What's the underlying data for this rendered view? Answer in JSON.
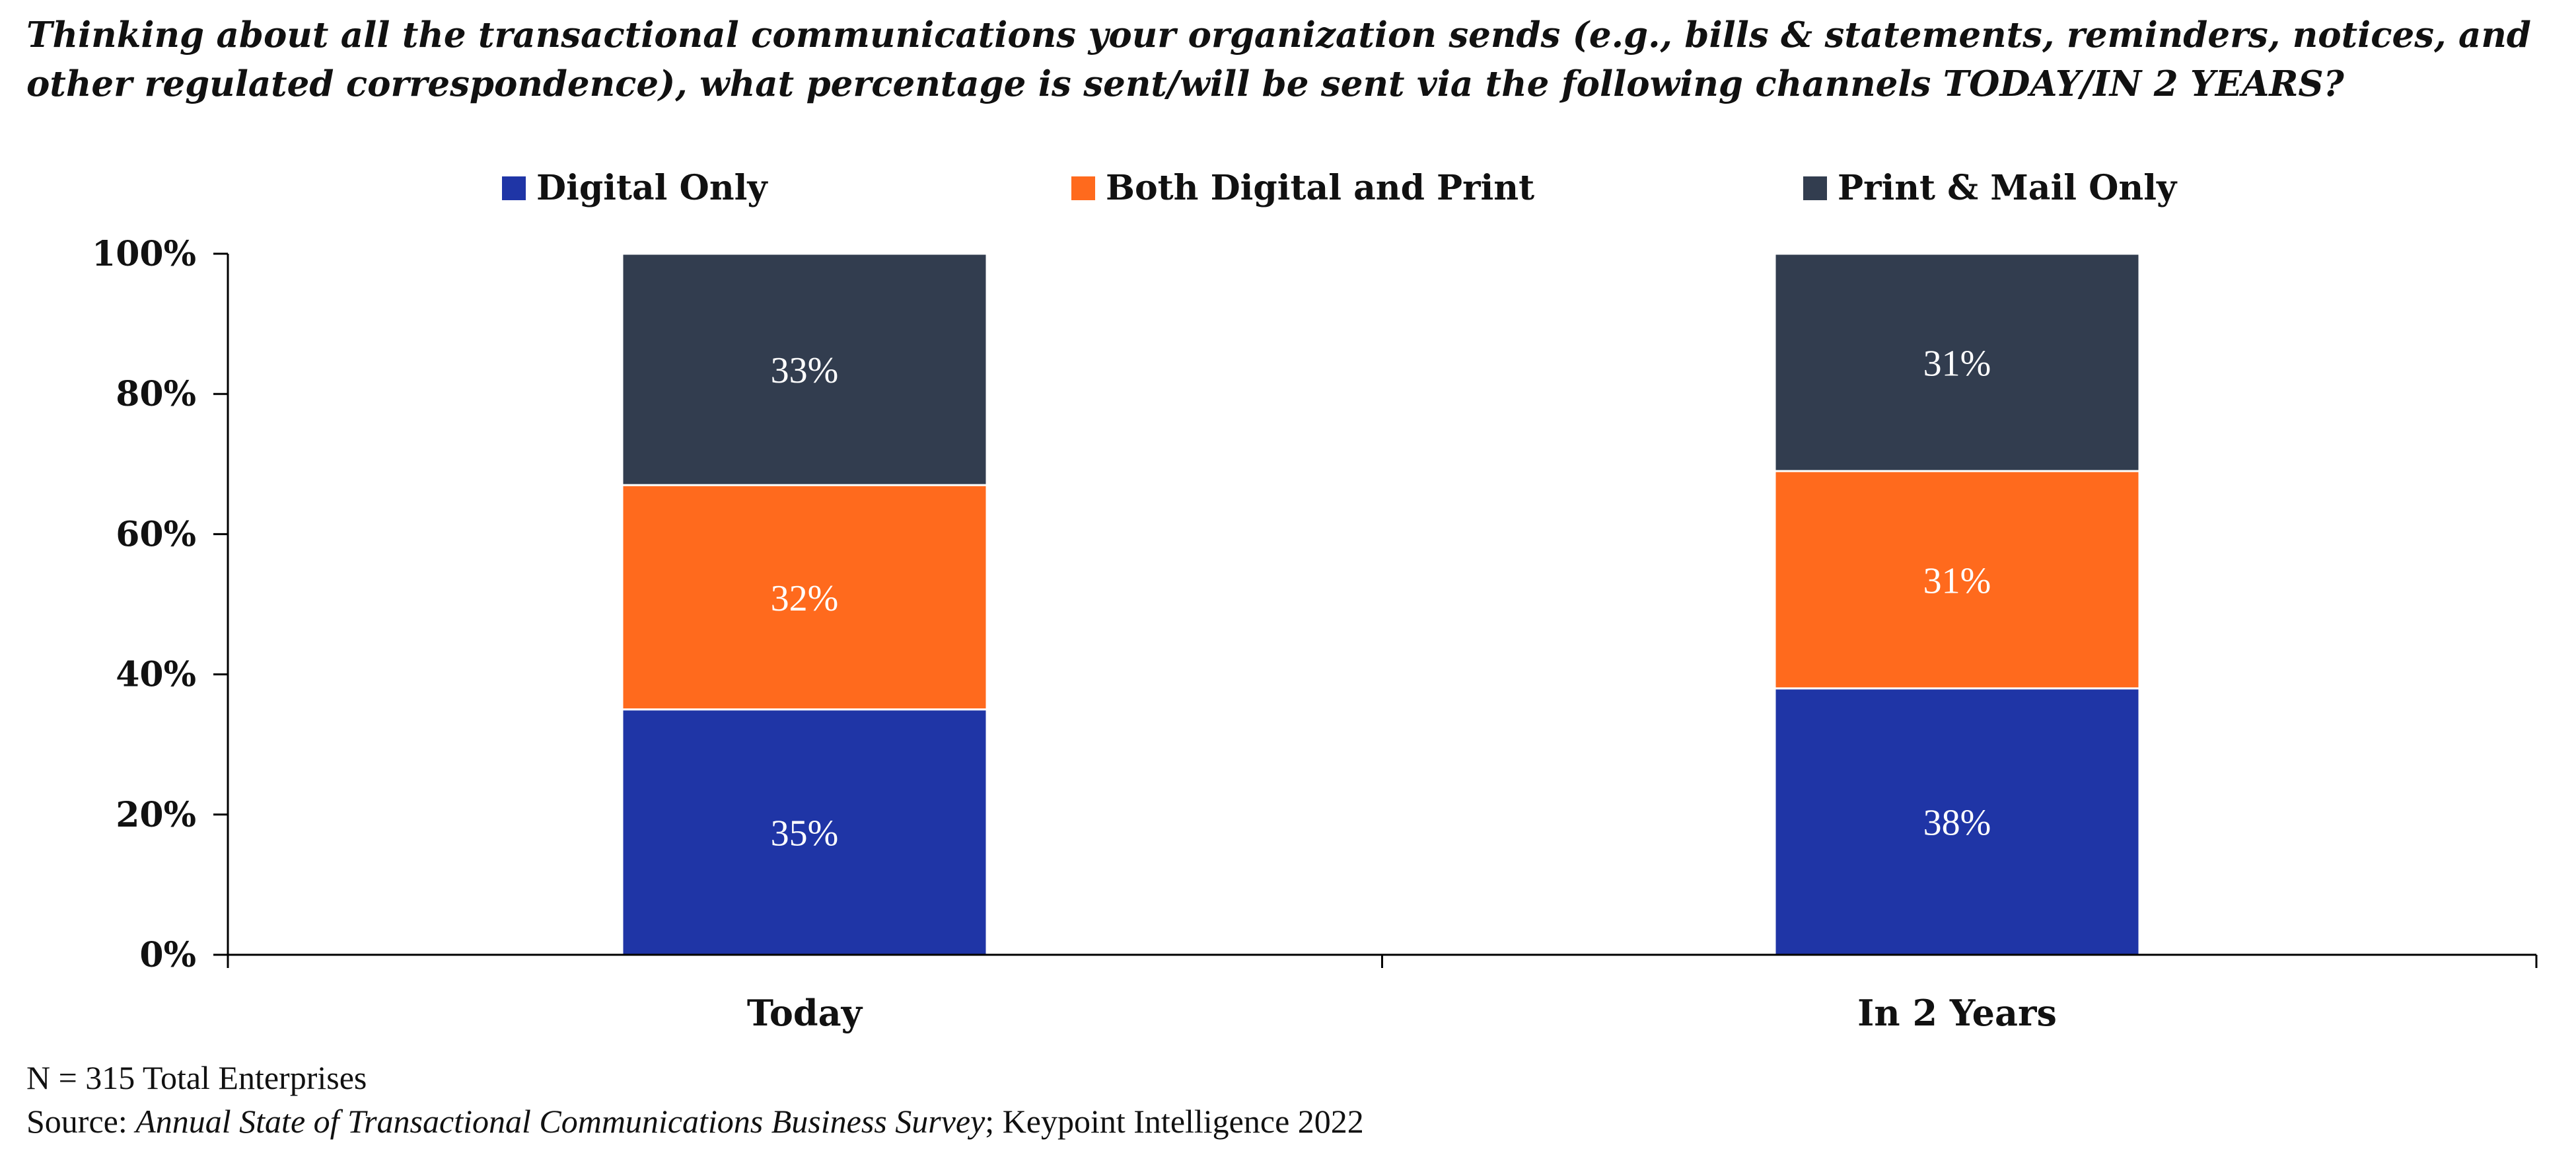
{
  "question": "Thinking about all the transactional communications your organization sends (e.g., bills & statements, reminders, notices, and other regulated correspondence), what percentage is sent/will be sent via the following channels TODAY/IN 2 YEARS?",
  "chart_data": {
    "type": "bar",
    "stacked": true,
    "categories": [
      "Today",
      "In 2 Years"
    ],
    "series": [
      {
        "name": "Digital Only",
        "color": "#1f35a6",
        "values": [
          35,
          38
        ],
        "labels": [
          "35%",
          "38%"
        ]
      },
      {
        "name": "Both Digital and Print",
        "color": "#ff6a1d",
        "values": [
          32,
          31
        ],
        "labels": [
          "32%",
          "31%"
        ]
      },
      {
        "name": "Print & Mail Only",
        "color": "#323d4f",
        "values": [
          33,
          31
        ],
        "labels": [
          "33%",
          "31%"
        ]
      }
    ],
    "ylim": [
      0,
      100
    ],
    "yticks": [
      0,
      20,
      40,
      60,
      80,
      100
    ],
    "ytick_labels": [
      "0%",
      "20%",
      "40%",
      "60%",
      "80%",
      "100%"
    ],
    "legend_position": "top",
    "grid": false
  },
  "footnotes": {
    "sample": "N = 315 Total Enterprises",
    "source_prefix": "Source: ",
    "source_title": "Annual State of Transactional Communications Business Survey",
    "source_suffix": "; Keypoint Intelligence 2022"
  }
}
